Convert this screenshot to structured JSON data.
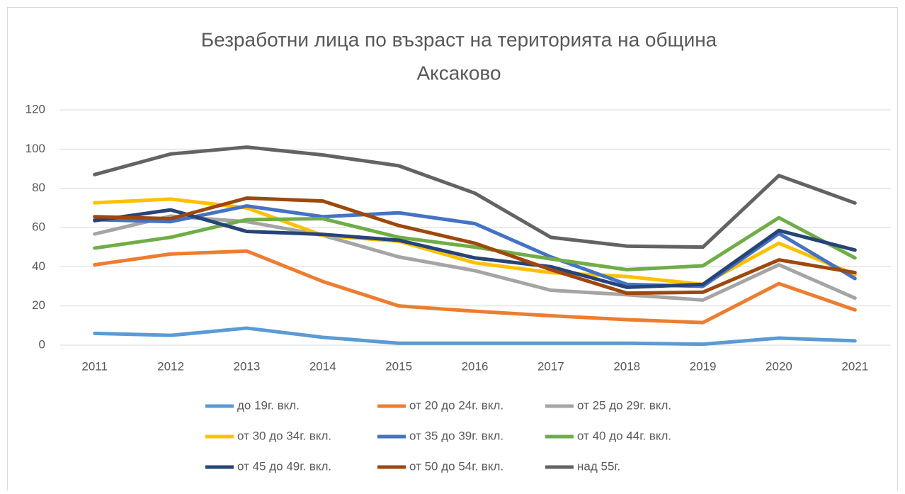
{
  "chart_data": {
    "type": "line",
    "title": [
      "Безработни лица по възраст на територията на община",
      "Аксаково"
    ],
    "categories": [
      "2011",
      "2012",
      "2013",
      "2014",
      "2015",
      "2016",
      "2017",
      "2018",
      "2019",
      "2020",
      "2021"
    ],
    "ylim": [
      0,
      120
    ],
    "yticks": [
      0,
      20,
      40,
      60,
      80,
      100,
      120
    ],
    "grid": true,
    "legend": "bottom",
    "series": [
      {
        "name": "до 19г. вкл.",
        "color": "#5b9bd5",
        "values": [
          6,
          5,
          8.7,
          4,
          1,
          1,
          1,
          1,
          0.5,
          3.6,
          2.2
        ]
      },
      {
        "name": "от 20 до 24г. вкл.",
        "color": "#ed7d31",
        "values": [
          41,
          46.5,
          48,
          32.5,
          20,
          17.3,
          15,
          13,
          11.5,
          31.4,
          18
        ]
      },
      {
        "name": "от 25 до 29г. вкл.",
        "color": "#a5a5a5",
        "values": [
          56.7,
          65.8,
          63,
          56,
          45,
          38,
          28,
          25.7,
          23,
          41,
          24
        ]
      },
      {
        "name": "от 30 до 34г. вкл.",
        "color": "#ffc000",
        "values": [
          72.6,
          74.5,
          70,
          56,
          53,
          42,
          37,
          35,
          31,
          52,
          36
        ]
      },
      {
        "name": "от 35 до 39г. вкл.",
        "color": "#4472c4",
        "values": [
          64,
          63,
          71,
          65.5,
          67.5,
          62,
          45,
          31,
          30,
          57,
          34
        ]
      },
      {
        "name": "от 40 до 44г. вкл.",
        "color": "#70ad47",
        "values": [
          49.5,
          55,
          64,
          64.5,
          55,
          50,
          44,
          38.5,
          40.5,
          65,
          44.5
        ]
      },
      {
        "name": "от 45 до 49г. вкл.",
        "color": "#264478",
        "values": [
          63.5,
          69,
          58,
          56.5,
          53.5,
          44.5,
          40,
          29.5,
          31,
          58.5,
          48.5
        ]
      },
      {
        "name": "от 50 до 54г. вкл.",
        "color": "#9e480e",
        "values": [
          65.5,
          64.5,
          75,
          73.5,
          61,
          52,
          38.5,
          26.5,
          27,
          43.5,
          37
        ]
      },
      {
        "name": "над 55г.",
        "color": "#636363",
        "values": [
          87,
          97.5,
          101,
          97,
          91.5,
          77.5,
          55,
          50.5,
          50,
          86.5,
          72.5
        ]
      }
    ]
  }
}
